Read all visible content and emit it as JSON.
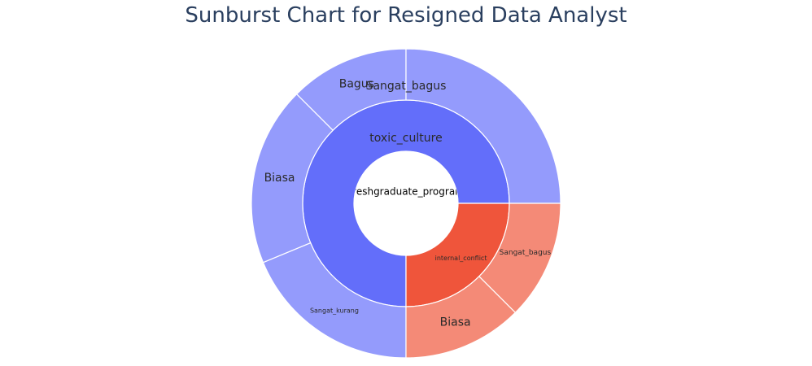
{
  "title": "Sunburst Chart for Resigned Data Analyst",
  "chart_data": {
    "type": "sunburst",
    "title": "Sunburst Chart for Resigned Data Analyst",
    "root": {
      "label": "Freshgraduate_program",
      "value": 100
    },
    "level1": [
      {
        "label": "toxic_culture",
        "value": 75,
        "color": "#636efa"
      },
      {
        "label": "internal_conflict",
        "value": 25,
        "color": "#ef553b"
      }
    ],
    "level2": [
      {
        "label": "Sangat_bagus",
        "parent": "toxic_culture",
        "value": 25,
        "color": "#949bfc"
      },
      {
        "label": "Bagus",
        "parent": "toxic_culture",
        "value": 12.5,
        "color": "#949bfc"
      },
      {
        "label": "Biasa",
        "parent": "toxic_culture",
        "value": 18.75,
        "color": "#949bfc"
      },
      {
        "label": "Sangat_kurang",
        "parent": "toxic_culture",
        "value": 18.75,
        "color": "#949bfc"
      },
      {
        "label": "Biasa",
        "parent": "internal_conflict",
        "value": 12.5,
        "color": "#f48a77"
      },
      {
        "label": "Sangat_bagus",
        "parent": "internal_conflict",
        "value": 12.5,
        "color": "#f48a77"
      }
    ]
  }
}
